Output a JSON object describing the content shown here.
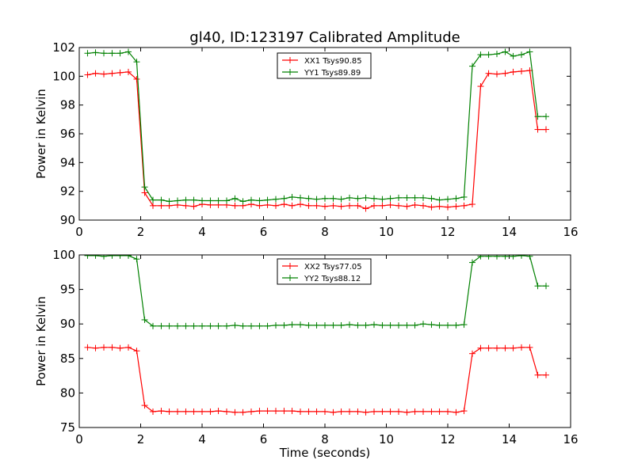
{
  "figure": {
    "title": "gl40, ID:123197 Calibrated Amplitude",
    "xlabel": "Time (seconds)"
  },
  "chart_data": [
    {
      "type": "line",
      "ylabel": "Power in Kelvin",
      "xlim": [
        0,
        16
      ],
      "ylim": [
        90,
        102
      ],
      "xticks": [
        0,
        2,
        4,
        6,
        8,
        10,
        12,
        14,
        16
      ],
      "yticks": [
        90,
        92,
        94,
        96,
        98,
        100,
        102
      ],
      "grid": false,
      "legend_position": "top-center",
      "x": [
        0.27,
        0.53,
        0.8,
        1.07,
        1.33,
        1.6,
        1.87,
        2.13,
        2.4,
        2.67,
        2.93,
        3.2,
        3.47,
        3.73,
        4.0,
        4.27,
        4.53,
        4.8,
        5.07,
        5.33,
        5.6,
        5.87,
        6.13,
        6.4,
        6.67,
        6.93,
        7.2,
        7.47,
        7.73,
        8.0,
        8.27,
        8.53,
        8.8,
        9.07,
        9.33,
        9.6,
        9.87,
        10.13,
        10.4,
        10.67,
        10.93,
        11.2,
        11.47,
        11.73,
        12.0,
        12.27,
        12.53,
        12.8,
        13.07,
        13.33,
        13.6,
        13.87,
        14.13,
        14.4,
        14.67,
        14.93,
        15.2
      ],
      "series": [
        {
          "name": "XX1 Tsys90.85",
          "color": "#ff0000",
          "values": [
            100.1,
            100.2,
            100.15,
            100.2,
            100.25,
            100.3,
            99.8,
            91.9,
            91.0,
            91.0,
            91.0,
            91.05,
            91.0,
            90.95,
            91.1,
            91.05,
            91.05,
            91.05,
            91.0,
            91.0,
            91.1,
            91.0,
            91.05,
            91.0,
            91.1,
            91.0,
            91.1,
            91.0,
            91.0,
            90.95,
            91.0,
            90.95,
            91.0,
            91.0,
            90.8,
            91.0,
            91.0,
            91.05,
            91.0,
            90.95,
            91.05,
            91.0,
            90.9,
            90.95,
            90.9,
            90.95,
            91.0,
            91.1,
            99.3,
            100.2,
            100.15,
            100.2,
            100.3,
            100.35,
            100.4,
            96.3,
            96.3
          ]
        },
        {
          "name": "YY1 Tsys89.89",
          "color": "#008000",
          "values": [
            101.6,
            101.65,
            101.6,
            101.6,
            101.6,
            101.7,
            101.0,
            92.3,
            91.4,
            91.4,
            91.3,
            91.35,
            91.4,
            91.4,
            91.35,
            91.35,
            91.35,
            91.35,
            91.5,
            91.3,
            91.4,
            91.35,
            91.4,
            91.45,
            91.5,
            91.6,
            91.55,
            91.5,
            91.45,
            91.5,
            91.5,
            91.45,
            91.55,
            91.5,
            91.55,
            91.5,
            91.45,
            91.5,
            91.55,
            91.55,
            91.55,
            91.55,
            91.5,
            91.4,
            91.45,
            91.5,
            91.6,
            100.7,
            101.5,
            101.5,
            101.55,
            101.7,
            101.4,
            101.5,
            101.7,
            97.2,
            97.2
          ]
        }
      ]
    },
    {
      "type": "line",
      "ylabel": "Power in Kelvin",
      "xlim": [
        0,
        16
      ],
      "ylim": [
        75,
        100
      ],
      "xticks": [
        0,
        2,
        4,
        6,
        8,
        10,
        12,
        14,
        16
      ],
      "yticks": [
        75,
        80,
        85,
        90,
        95,
        100
      ],
      "grid": false,
      "legend_position": "top-center",
      "x": [
        0.27,
        0.53,
        0.8,
        1.07,
        1.33,
        1.6,
        1.87,
        2.13,
        2.4,
        2.67,
        2.93,
        3.2,
        3.47,
        3.73,
        4.0,
        4.27,
        4.53,
        4.8,
        5.07,
        5.33,
        5.6,
        5.87,
        6.13,
        6.4,
        6.67,
        6.93,
        7.2,
        7.47,
        7.73,
        8.0,
        8.27,
        8.53,
        8.8,
        9.07,
        9.33,
        9.6,
        9.87,
        10.13,
        10.4,
        10.67,
        10.93,
        11.2,
        11.47,
        11.73,
        12.0,
        12.27,
        12.53,
        12.8,
        13.07,
        13.33,
        13.6,
        13.87,
        14.13,
        14.4,
        14.67,
        14.93,
        15.2
      ],
      "series": [
        {
          "name": "XX2 Tsys77.05",
          "color": "#ff0000",
          "values": [
            86.6,
            86.5,
            86.6,
            86.6,
            86.5,
            86.6,
            86.1,
            78.2,
            77.3,
            77.4,
            77.3,
            77.3,
            77.3,
            77.3,
            77.3,
            77.3,
            77.4,
            77.3,
            77.2,
            77.2,
            77.3,
            77.4,
            77.4,
            77.4,
            77.4,
            77.4,
            77.3,
            77.3,
            77.3,
            77.3,
            77.2,
            77.3,
            77.3,
            77.3,
            77.2,
            77.3,
            77.3,
            77.3,
            77.3,
            77.2,
            77.3,
            77.3,
            77.3,
            77.3,
            77.3,
            77.2,
            77.4,
            85.7,
            86.5,
            86.5,
            86.5,
            86.5,
            86.5,
            86.6,
            86.6,
            82.6,
            82.6
          ]
        },
        {
          "name": "YY2 Tsys88.12",
          "color": "#008000",
          "values": [
            99.9,
            99.9,
            99.8,
            99.9,
            99.9,
            99.9,
            99.4,
            90.6,
            89.7,
            89.7,
            89.7,
            89.7,
            89.7,
            89.7,
            89.7,
            89.7,
            89.7,
            89.7,
            89.8,
            89.7,
            89.7,
            89.7,
            89.7,
            89.8,
            89.8,
            89.9,
            89.9,
            89.8,
            89.8,
            89.8,
            89.8,
            89.8,
            89.9,
            89.8,
            89.8,
            89.9,
            89.8,
            89.8,
            89.8,
            89.8,
            89.8,
            90.0,
            89.9,
            89.8,
            89.8,
            89.8,
            89.9,
            98.9,
            99.8,
            99.8,
            99.8,
            99.8,
            99.8,
            99.9,
            99.8,
            95.5,
            95.5
          ]
        }
      ]
    }
  ]
}
